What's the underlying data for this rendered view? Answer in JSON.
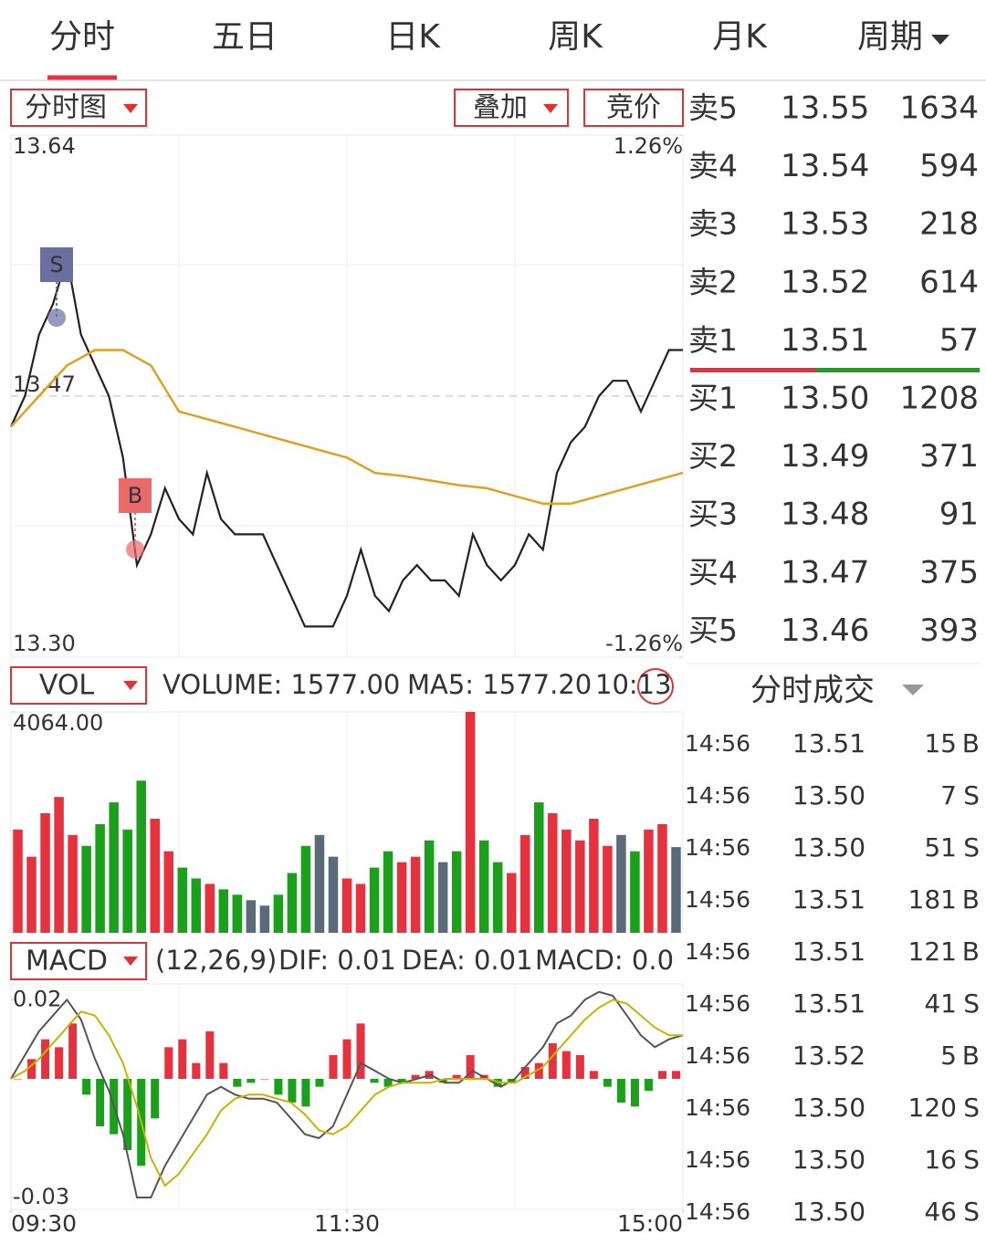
{
  "tabs": [
    "分时",
    "五日",
    "日K",
    "周K",
    "月K",
    "周期"
  ],
  "price_chart": {
    "type": "line",
    "selector": "分时图",
    "overlay": "叠加",
    "auction": "竞价",
    "signals": [
      "S",
      "B"
    ],
    "ylim": [
      13.3,
      13.64
    ],
    "yticks": [
      13.64,
      13.47,
      {
        "value": 13.3,
        "label": "13.30"
      }
    ],
    "y2lim": [
      -1.26,
      1.26
    ],
    "y2ticks": [
      {
        "value": 1.26,
        "label": "1.26%"
      },
      {
        "value": -1.26,
        "label": "-1.26%"
      }
    ],
    "series": [
      {
        "color": "#222222",
        "values": [
          13.45,
          13.47,
          13.51,
          13.53,
          13.56,
          13.51,
          13.49,
          13.47,
          13.43,
          13.36,
          13.38,
          13.41,
          13.39,
          13.38,
          13.42,
          13.39,
          13.38,
          13.38,
          13.38,
          13.36,
          13.34,
          13.32,
          13.32,
          13.32,
          13.34,
          13.37,
          13.34,
          13.33,
          13.35,
          13.36,
          13.35,
          13.35,
          13.34,
          13.38,
          13.36,
          13.35,
          13.36,
          13.38,
          13.37,
          13.42,
          13.44,
          13.45,
          13.47,
          13.48,
          13.48,
          13.46,
          13.48,
          13.5,
          13.5
        ]
      },
      {
        "color": "#e0a020",
        "values": [
          13.45,
          13.47,
          13.49,
          13.5,
          13.5,
          13.49,
          13.46,
          13.455,
          13.45,
          13.445,
          13.44,
          13.435,
          13.43,
          13.42,
          13.418,
          13.415,
          13.412,
          13.41,
          13.405,
          13.4,
          13.4,
          13.405,
          13.41,
          13.415,
          13.42
        ]
      }
    ]
  },
  "order_book": {
    "rows": [
      {
        "label": "卖5",
        "price": "13.55",
        "volume": "1634",
        "color": "#e5323e"
      },
      {
        "label": "卖4",
        "price": "13.54",
        "volume": "594",
        "color": "#e5323e"
      },
      {
        "label": "卖3",
        "price": "13.53",
        "volume": "218",
        "color": "#e5323e"
      },
      {
        "label": "卖2",
        "price": "13.52",
        "volume": "614",
        "color": "#e5323e"
      },
      {
        "label": "卖1",
        "price": "13.51",
        "volume": "57",
        "color": "#e5323e"
      },
      {
        "label": "买1",
        "price": "13.50",
        "volume": "1208",
        "color": "#e5323e"
      },
      {
        "label": "买2",
        "price": "13.49",
        "volume": "371",
        "color": "#e5323e"
      },
      {
        "label": "买3",
        "price": "13.48",
        "volume": "91",
        "color": "#e5323e"
      },
      {
        "label": "买4",
        "price": "13.47",
        "volume": "375",
        "color": "#555555"
      },
      {
        "label": "买5",
        "price": "13.46",
        "volume": "393",
        "color": "#1aa01a"
      }
    ]
  },
  "volume_chart": {
    "type": "bar",
    "selector": "VOL",
    "indicators": [
      "VOLUME: 1577.00",
      "MA5: 1577.20",
      "10:13"
    ],
    "indicator_colors": [
      "#555555",
      "#b8a000",
      "#d030d0"
    ],
    "ylim": [
      0,
      4064
    ],
    "yticks": [
      {
        "value": 4064,
        "label": "4064.00"
      }
    ],
    "values": [
      1900,
      1400,
      2200,
      2500,
      1800,
      1600,
      2000,
      2400,
      1900,
      2800,
      2100,
      1500,
      1200,
      1000,
      900,
      800,
      700,
      600,
      500,
      700,
      1100,
      1600,
      1800,
      1400,
      1000,
      900,
      1200,
      1500,
      1300,
      1400,
      1700,
      1300,
      1500,
      4064,
      1700,
      1300,
      1100,
      1800,
      2400,
      2200,
      1900,
      1700,
      2100,
      1600,
      1800,
      1500,
      1900,
      2000,
      1577
    ],
    "colors": [
      "#e5323e",
      "#e5323e",
      "#e5323e",
      "#e5323e",
      "#e5323e",
      "#1aa01a",
      "#1aa01a",
      "#1aa01a",
      "#1aa01a",
      "#1aa01a",
      "#e5323e",
      "#e5323e",
      "#1aa01a",
      "#1aa01a",
      "#e5323e",
      "#1aa01a",
      "#1aa01a",
      "#5a6a78",
      "#5a6a78",
      "#1aa01a",
      "#1aa01a",
      "#1aa01a",
      "#5a6a78",
      "#5a6a78",
      "#e5323e",
      "#e5323e",
      "#1aa01a",
      "#1aa01a",
      "#e5323e",
      "#e5323e",
      "#1aa01a",
      "#5a6a78",
      "#1aa01a",
      "#e5323e",
      "#1aa01a",
      "#1aa01a",
      "#e5323e",
      "#e5323e",
      "#1aa01a",
      "#e5323e",
      "#e5323e",
      "#e5323e",
      "#e5323e",
      "#e5323e",
      "#5a6a78",
      "#1aa01a",
      "#e5323e",
      "#e5323e",
      "#5a6a78"
    ]
  },
  "macd_chart": {
    "type": "bar",
    "selector": "MACD",
    "indicators": [
      "(12,26,9)",
      "DIF: 0.01",
      "DEA: 0.01",
      "MACD: 0.0"
    ],
    "indicator_colors": [
      "#555555",
      "#555555",
      "#b8a000",
      "#d030d0"
    ],
    "ylim": [
      -0.033,
      0.024
    ],
    "yticks": [
      0.02,
      -0.03
    ],
    "up_color": "#e5323e",
    "down_color": "#1aa01a",
    "xlim": [
      0,
      240
    ],
    "xticks": [
      {
        "value": 0,
        "label": "09:30"
      },
      {
        "value": 120,
        "label": "11:30"
      },
      {
        "value": 240,
        "label": "15:00"
      }
    ],
    "values": [
      0,
      0.005,
      0.01,
      0.008,
      0.014,
      -0.004,
      -0.012,
      -0.014,
      -0.018,
      -0.022,
      -0.01,
      0.008,
      0.01,
      0.004,
      0.012,
      0.004,
      -0.002,
      -0.001,
      0,
      -0.004,
      -0.006,
      -0.007,
      -0.002,
      0.006,
      0.01,
      0.014,
      -0.001,
      -0.002,
      -0.001,
      0.001,
      0.002,
      -0.001,
      0.001,
      0.006,
      0.001,
      -0.002,
      -0.001,
      0.003,
      0.004,
      0.009,
      0.007,
      0.006,
      0.002,
      -0.002,
      -0.006,
      -0.007,
      -0.003,
      0.002,
      0.002
    ],
    "series": [
      {
        "color": "#555555",
        "values": [
          0,
          0.006,
          0.012,
          0.016,
          0.02,
          0.015,
          0.005,
          -0.003,
          -0.014,
          -0.03,
          -0.03,
          -0.022,
          -0.016,
          -0.01,
          -0.004,
          -0.002,
          -0.004,
          -0.005,
          -0.005,
          -0.006,
          -0.01,
          -0.014,
          -0.015,
          -0.012,
          -0.004,
          0.004,
          0.002,
          0,
          -0.001,
          0,
          0.001,
          -0.001,
          -0.001,
          0.002,
          0,
          -0.002,
          0,
          0.004,
          0.008,
          0.014,
          0.016,
          0.02,
          0.022,
          0.021,
          0.016,
          0.011,
          0.008,
          0.01,
          0.011
        ]
      },
      {
        "color": "#c8b400",
        "values": [
          0,
          0.002,
          0.005,
          0.009,
          0.013,
          0.017,
          0.016,
          0.011,
          0.004,
          -0.007,
          -0.02,
          -0.027,
          -0.024,
          -0.019,
          -0.014,
          -0.008,
          -0.005,
          -0.004,
          -0.004,
          -0.005,
          -0.006,
          -0.009,
          -0.013,
          -0.014,
          -0.012,
          -0.008,
          -0.004,
          -0.002,
          -0.001,
          -0.001,
          -0.001,
          0,
          0,
          0,
          0,
          -0.001,
          -0.001,
          0.001,
          0.003,
          0.007,
          0.011,
          0.015,
          0.018,
          0.02,
          0.019,
          0.016,
          0.013,
          0.011,
          0.011
        ]
      }
    ]
  },
  "trades": {
    "title": "分时成交",
    "price_color": "#e5323e",
    "side_colors": {
      "B": "#e5323e",
      "S": "#1aa01a"
    },
    "rows": [
      {
        "time": "14:56",
        "price": "13.51",
        "volume": "15",
        "side": "B"
      },
      {
        "time": "14:56",
        "price": "13.50",
        "volume": "7",
        "side": "S"
      },
      {
        "time": "14:56",
        "price": "13.50",
        "volume": "51",
        "side": "S"
      },
      {
        "time": "14:56",
        "price": "13.51",
        "volume": "181",
        "side": "B"
      },
      {
        "time": "14:56",
        "price": "13.51",
        "volume": "121",
        "side": "B"
      },
      {
        "time": "14:56",
        "price": "13.51",
        "volume": "41",
        "side": "S"
      },
      {
        "time": "14:56",
        "price": "13.52",
        "volume": "5",
        "side": "B"
      },
      {
        "time": "14:56",
        "price": "13.50",
        "volume": "120",
        "side": "S"
      },
      {
        "time": "14:56",
        "price": "13.50",
        "volume": "16",
        "side": "S"
      },
      {
        "time": "14:56",
        "price": "13.50",
        "volume": "46",
        "side": "S"
      }
    ]
  }
}
